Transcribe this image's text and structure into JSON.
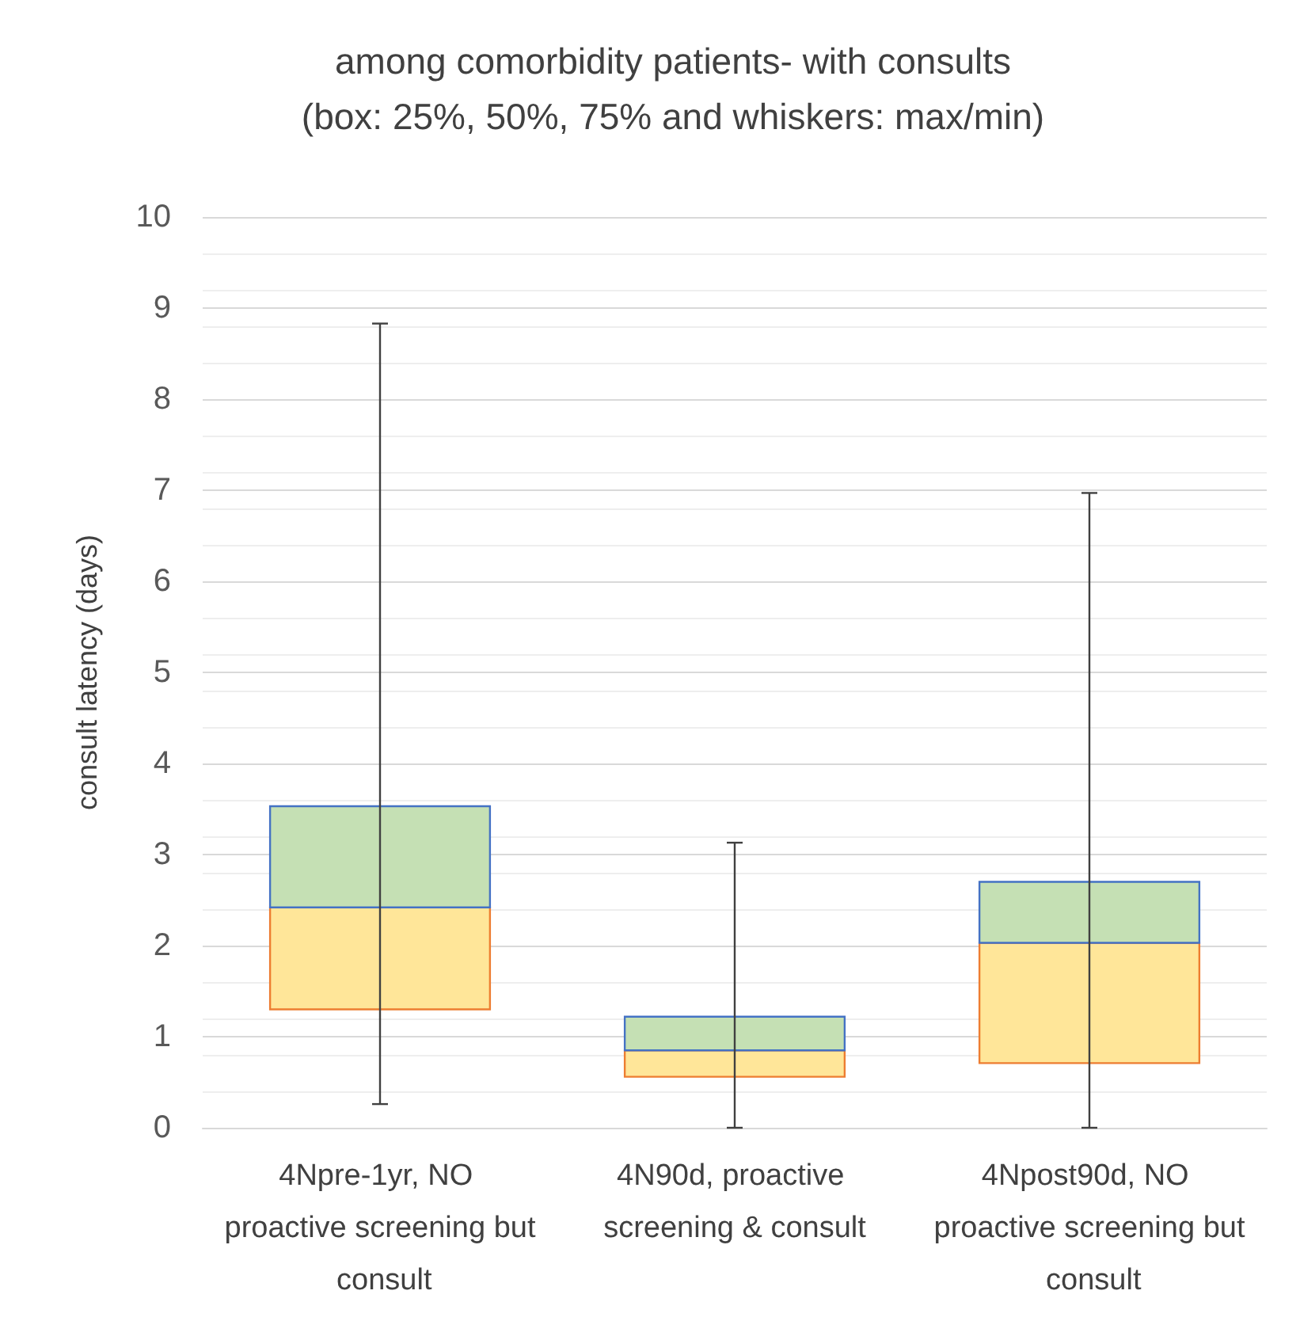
{
  "chart_data": {
    "type": "box",
    "title": "among comorbidity patients- with consults",
    "subtitle": "(box: 25%, 50%, 75% and whiskers: max/min)",
    "ylabel": "consult latency (days)",
    "categories": [
      "4Npre-1yr, NO proactive screening but consult",
      "4N90d, proactive screening & consult",
      "4Npost90d, NO proactive screening but consult"
    ],
    "series": [
      {
        "color": "#ffe699",
        "boxes": [
          {
            "low": 0.26,
            "q1": 1.3,
            "median": 2.42,
            "q3": 3.53,
            "high": 8.83
          },
          {
            "low": 0,
            "q1": 0.56,
            "median": 0.85,
            "q3": 1.22,
            "high": 3.13
          },
          {
            "low": 0,
            "q1": 0.71,
            "median": 2.03,
            "q3": 2.7,
            "high": 6.97
          }
        ]
      }
    ],
    "ylim": [
      0,
      10
    ],
    "yticks": [
      0,
      1,
      2,
      3,
      4,
      5,
      6,
      7,
      8,
      9,
      10
    ],
    "grid": true
  }
}
